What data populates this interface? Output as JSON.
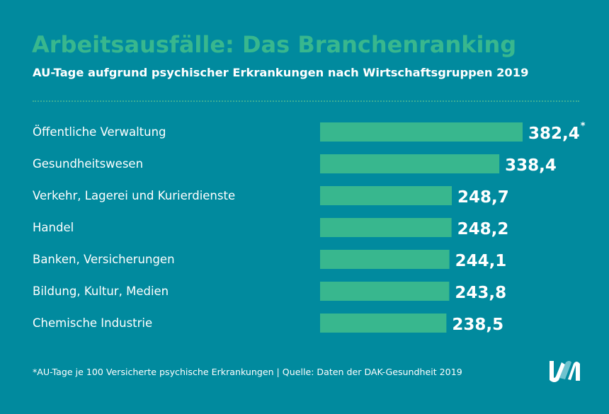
{
  "header": {
    "title": "Arbeitsausfälle: Das Branchenranking",
    "subtitle": "AU-Tage aufgrund psychischer Erkrankungen nach Wirtschaftsgruppen 2019"
  },
  "chart_data": {
    "type": "bar",
    "orientation": "horizontal",
    "title": "Arbeitsausfälle: Das Branchenranking",
    "subtitle": "AU-Tage aufgrund psychischer Erkrankungen nach Wirtschaftsgruppen 2019",
    "categories": [
      "Öffentliche Verwaltung",
      "Gesundheitswesen",
      "Verkehr, Lagerei und Kurierdienste",
      "Handel",
      "Banken, Versicherungen",
      "Bildung, Kultur, Medien",
      "Chemische Industrie"
    ],
    "values": [
      382.4,
      338.4,
      248.7,
      248.2,
      244.1,
      243.8,
      238.5
    ],
    "labels": [
      "382,4",
      "338,4",
      "248,7",
      "248,2",
      "244,1",
      "243,8",
      "238,5"
    ],
    "first_label_marker": "*",
    "xlim": [
      0,
      382.4
    ],
    "grid": false,
    "bar_color": "#38b78e"
  },
  "footer": {
    "note": "*AU-Tage je 100 Versicherte psychische Erkrankungen | Quelle: Daten der DAK-Gesundheit 2019"
  },
  "colors": {
    "background": "#018a9e",
    "accent": "#38b78e"
  }
}
